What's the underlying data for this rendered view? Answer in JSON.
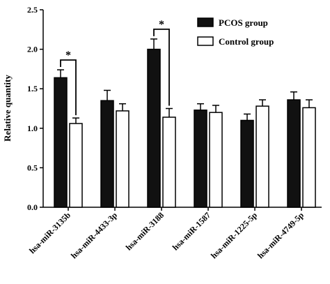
{
  "chart_data": {
    "type": "bar",
    "title": "",
    "xlabel": "",
    "ylabel": "Relative quantity",
    "ylim": [
      0,
      2.5
    ],
    "yticks": [
      "0.0",
      "0.5",
      "1.0",
      "1.5",
      "2.0",
      "2.5"
    ],
    "grid": false,
    "legend_position": "top-right",
    "categories": [
      "hsa-miR-3135b",
      "hsa-miR-4433-3p",
      "hsa-miR-3188",
      "hsa-miR-1587",
      "hsa-miR-1225-5p",
      "hsa-miR-4749-5p"
    ],
    "series": [
      {
        "name": "PCOS group",
        "color": "#111111",
        "fill": "solid",
        "values": [
          1.64,
          1.35,
          2.0,
          1.23,
          1.1,
          1.36
        ],
        "errors": [
          0.1,
          0.13,
          0.13,
          0.08,
          0.08,
          0.1
        ]
      },
      {
        "name": "Control group",
        "color": "#ffffff",
        "fill": "hollow",
        "values": [
          1.06,
          1.22,
          1.14,
          1.2,
          1.28,
          1.26
        ],
        "errors": [
          0.07,
          0.09,
          0.11,
          0.09,
          0.08,
          0.1
        ]
      }
    ],
    "annotations": [
      {
        "category_index": 0,
        "text": "*"
      },
      {
        "category_index": 2,
        "text": "*"
      }
    ]
  }
}
